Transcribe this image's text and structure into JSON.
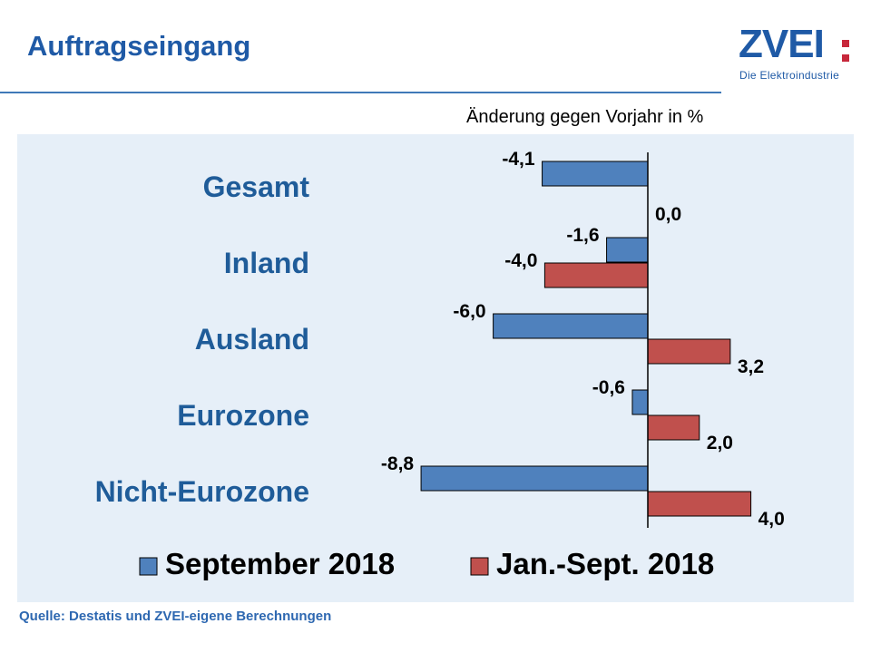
{
  "header": {
    "title": "Auftragseingang"
  },
  "logo": {
    "name": "ZVEI",
    "tagline": "Die Elektroindustrie"
  },
  "source": "Quelle: Destatis und ZVEI-eigene Berechnungen",
  "colors": {
    "september": "#4f81bd",
    "jan_sept": "#c0504d",
    "title": "#1f5aa6",
    "category_label": "#1f5c99",
    "panel": "#e6eff8"
  },
  "chart_data": {
    "type": "bar",
    "orientation": "horizontal",
    "subtitle": "Änderung gegen Vorjahr in %",
    "categories": [
      "Gesamt",
      "Inland",
      "Ausland",
      "Eurozone",
      "Nicht-Eurozone"
    ],
    "series": [
      {
        "name": "September 2018",
        "values": [
          -4.1,
          -1.6,
          -6.0,
          -0.6,
          -8.8
        ],
        "labels": [
          "-4,1",
          "-1,6",
          "-6,0",
          "-0,6",
          "-8,8"
        ],
        "color": "#4f81bd"
      },
      {
        "name": "Jan.-Sept. 2018",
        "values": [
          0.0,
          -4.0,
          3.2,
          2.0,
          4.0
        ],
        "labels": [
          "0,0",
          "-4,0",
          "3,2",
          "2,0",
          "4,0"
        ],
        "color": "#c0504d"
      }
    ],
    "legend_position": "bottom",
    "grid": false
  }
}
